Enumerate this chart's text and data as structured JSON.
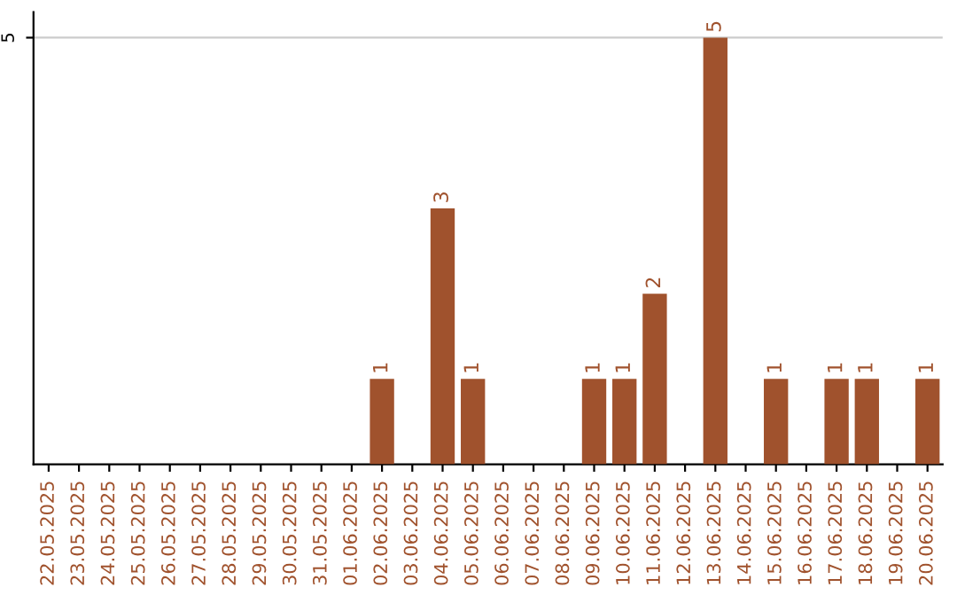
{
  "chart_data": {
    "type": "bar",
    "categories": [
      "22.05.2025",
      "23.05.2025",
      "24.05.2025",
      "25.05.2025",
      "26.05.2025",
      "27.05.2025",
      "28.05.2025",
      "29.05.2025",
      "30.05.2025",
      "31.05.2025",
      "01.06.2025",
      "02.06.2025",
      "03.06.2025",
      "04.06.2025",
      "05.06.2025",
      "06.06.2025",
      "07.06.2025",
      "08.06.2025",
      "09.06.2025",
      "10.06.2025",
      "11.06.2025",
      "12.06.2025",
      "13.06.2025",
      "14.06.2025",
      "15.06.2025",
      "16.06.2025",
      "17.06.2025",
      "18.06.2025",
      "19.06.2025",
      "20.06.2025"
    ],
    "values": [
      0,
      0,
      0,
      0,
      0,
      0,
      0,
      0,
      0,
      0,
      0,
      1,
      0,
      3,
      1,
      0,
      0,
      0,
      1,
      1,
      2,
      0,
      5,
      0,
      1,
      0,
      1,
      1,
      0,
      1
    ],
    "value_labels": [
      null,
      null,
      null,
      null,
      null,
      null,
      null,
      null,
      null,
      null,
      null,
      "1",
      null,
      "3",
      "1",
      null,
      null,
      null,
      "1",
      "1",
      "2",
      null,
      "5",
      null,
      "1",
      null,
      "1",
      "1",
      null,
      "1"
    ],
    "color": "#a0522d",
    "ylim": [
      0,
      5.3
    ],
    "yticks": [
      5
    ],
    "grid": "y"
  }
}
